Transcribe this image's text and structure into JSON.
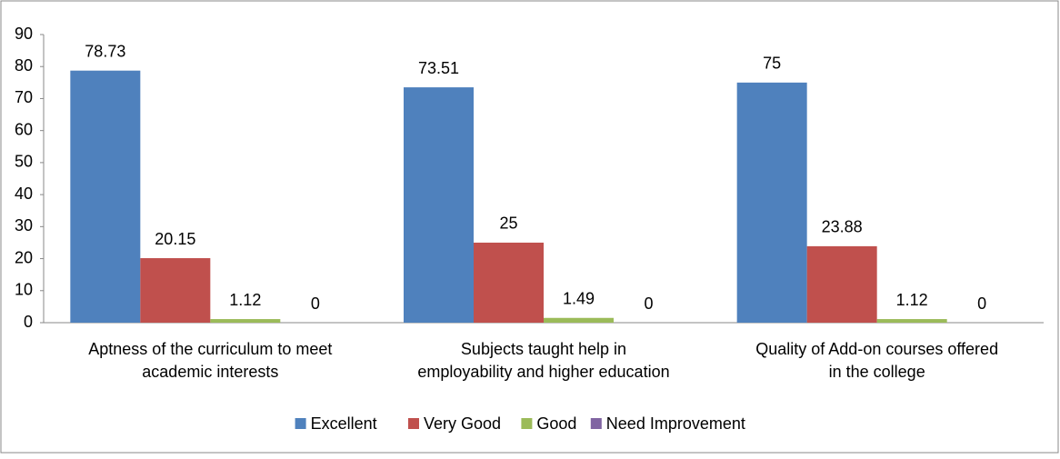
{
  "chart_data": {
    "type": "bar",
    "categories": [
      "Aptness of the curriculum to meet academic interests",
      "Subjects taught  help in employability and higher education",
      "Quality of Add-on courses offered in the college"
    ],
    "series": [
      {
        "name": "Excellent",
        "color": "#4f81bd",
        "values": [
          78.73,
          73.51,
          75
        ]
      },
      {
        "name": "Very Good",
        "color": "#c0504d",
        "values": [
          20.15,
          25,
          23.88
        ]
      },
      {
        "name": "Good",
        "color": "#9bbb59",
        "values": [
          1.12,
          1.49,
          1.12
        ]
      },
      {
        "name": "Need Improvement",
        "color": "#8064a2",
        "values": [
          0,
          0,
          0
        ]
      }
    ],
    "ylim": [
      0,
      90
    ],
    "yticks": [
      0,
      10,
      20,
      30,
      40,
      50,
      60,
      70,
      80,
      90
    ],
    "grid": false,
    "legend": "bottom"
  }
}
